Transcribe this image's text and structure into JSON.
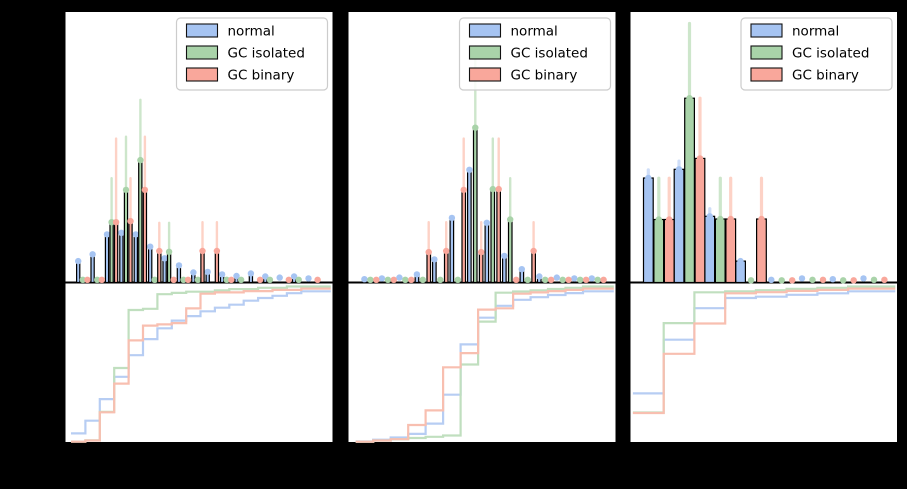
{
  "figure": {
    "background": "#000000",
    "panel_background": "#ffffff",
    "spine_color": "#000000",
    "text_color": "#000000"
  },
  "legend": {
    "background": "#ffffff",
    "border_color": "#cccccc",
    "items": [
      {
        "label": "normal",
        "swatch_color": "#a6c4f2"
      },
      {
        "label": "GC isolated",
        "swatch_color": "#a9d3a9"
      },
      {
        "label": "GC binary",
        "swatch_color": "#f9a79b"
      }
    ]
  },
  "chart_data": {
    "type": "bar",
    "subtype": "grouped-histogram-with-upper-errorbars-plus-cdf-step",
    "title": "",
    "xlabel": "",
    "ylabel": "",
    "tick_labels_visible": false,
    "legend_position": "upper right",
    "series_style": [
      {
        "name": "normal",
        "fill": "#a6c4f2",
        "error_color": "#cfdef8",
        "cdf_color": "#b7cdf3",
        "cdf_top": 0.945
      },
      {
        "name": "GC isolated",
        "fill": "#a9d3a9",
        "error_color": "#cde6cb",
        "cdf_color": "#c0dfbf",
        "cdf_top": 0.975
      },
      {
        "name": "GC binary",
        "fill": "#f9a79b",
        "error_color": "#fdd2c6",
        "cdf_color": "#f8bfb0",
        "cdf_top": 0.962
      }
    ],
    "panels": [
      {
        "name": "left",
        "bins": {
          "x0": 0.051,
          "dx": 0.0535,
          "count": 17
        },
        "bar_width": 0.012,
        "offsets": [
          0,
          0.017,
          0.034
        ],
        "series": [
          {
            "name": "normal",
            "heights": [
              0.079,
              0.104,
              0.177,
              0.183,
              0.177,
              0.132,
              0.089,
              0.063,
              0.037,
              0.039,
              0.03,
              0.024,
              0.033,
              0.022,
              0.018,
              0.022,
              0.015
            ]
          },
          {
            "name": "GC isolated",
            "heights": [
              0.01,
              0.01,
              0.222,
              0.341,
              0.451,
              0.01,
              0.113,
              0.01,
              0.01,
              0,
              0.01,
              0.01,
              0,
              0.01,
              0,
              0.01,
              0
            ],
            "err_top": [
              0,
              0,
              0.384,
              0.537,
              0.673,
              0,
              0.22,
              0,
              0,
              0,
              0,
              0,
              0,
              0,
              0,
              0,
              0
            ]
          },
          {
            "name": "GC binary",
            "heights": [
              0.01,
              0.01,
              0.222,
              0.226,
              0.341,
              0.116,
              0.01,
              0.01,
              0.116,
              0.116,
              0.01,
              0,
              0.01,
              0,
              0.01,
              0,
              0.01
            ],
            "err_top": [
              0,
              0,
              0.53,
              0.384,
              0.537,
              0.22,
              0,
              0,
              0.222,
              0.222,
              0,
              0,
              0,
              0,
              0,
              0,
              0
            ]
          }
        ]
      },
      {
        "name": "center",
        "bins": {
          "x0": 0.063,
          "dx": 0.065,
          "count": 14
        },
        "bar_width": 0.013,
        "offsets": [
          0,
          0.022,
          0.044
        ],
        "series": [
          {
            "name": "normal",
            "heights": [
              0.012,
              0.015,
              0.018,
              0.03,
              0.085,
              0.238,
              0.415,
              0.22,
              0.098,
              0.049,
              0.022,
              0.018,
              0.015,
              0.015
            ]
          },
          {
            "name": "GC isolated",
            "heights": [
              0.01,
              0.01,
              0.01,
              0.01,
              0.01,
              0.01,
              0.57,
              0.344,
              0.232,
              0.01,
              0.01,
              0.01,
              0.01,
              0.01
            ],
            "err_top": [
              0,
              0,
              0,
              0,
              0,
              0,
              0.87,
              0.53,
              0.384,
              0,
              0,
              0,
              0,
              0
            ]
          },
          {
            "name": "GC binary",
            "heights": [
              0.01,
              0.01,
              0.01,
              0.112,
              0.116,
              0.341,
              0.112,
              0.344,
              0.01,
              0.116,
              0.01,
              0.01,
              0.01,
              0.01
            ],
            "err_top": [
              0,
              0,
              0,
              0.222,
              0.222,
              0.53,
              0.222,
              0.53,
              0,
              0.222,
              0,
              0,
              0,
              0
            ]
          }
        ]
      },
      {
        "name": "right",
        "bins": {
          "x0": 0.07,
          "dx": 0.1145,
          "count": 8
        },
        "bar_width": 0.036,
        "offsets": [
          0,
          0.039,
          0.078
        ],
        "series": [
          {
            "name": "normal",
            "heights": [
              0.385,
              0.417,
              0.244,
              0.079,
              0.01,
              0.015,
              0.012,
              0.015
            ],
            "err_top": [
              0.415,
              0.447,
              0.272,
              0,
              0,
              0,
              0,
              0
            ]
          },
          {
            "name": "GC isolated",
            "heights": [
              0.232,
              0.679,
              0.234,
              0.008,
              0.008,
              0.01,
              0.008,
              0.01
            ],
            "err_top": [
              0.384,
              0.954,
              0.384,
              0,
              0,
              0,
              0,
              0
            ]
          },
          {
            "name": "GC binary",
            "heights": [
              0.232,
              0.457,
              0.234,
              0.234,
              0.008,
              0.01,
              0.008,
              0.01
            ],
            "err_top": [
              0.384,
              0.679,
              0.384,
              0.384,
              0,
              0,
              0,
              0
            ]
          }
        ]
      }
    ]
  }
}
